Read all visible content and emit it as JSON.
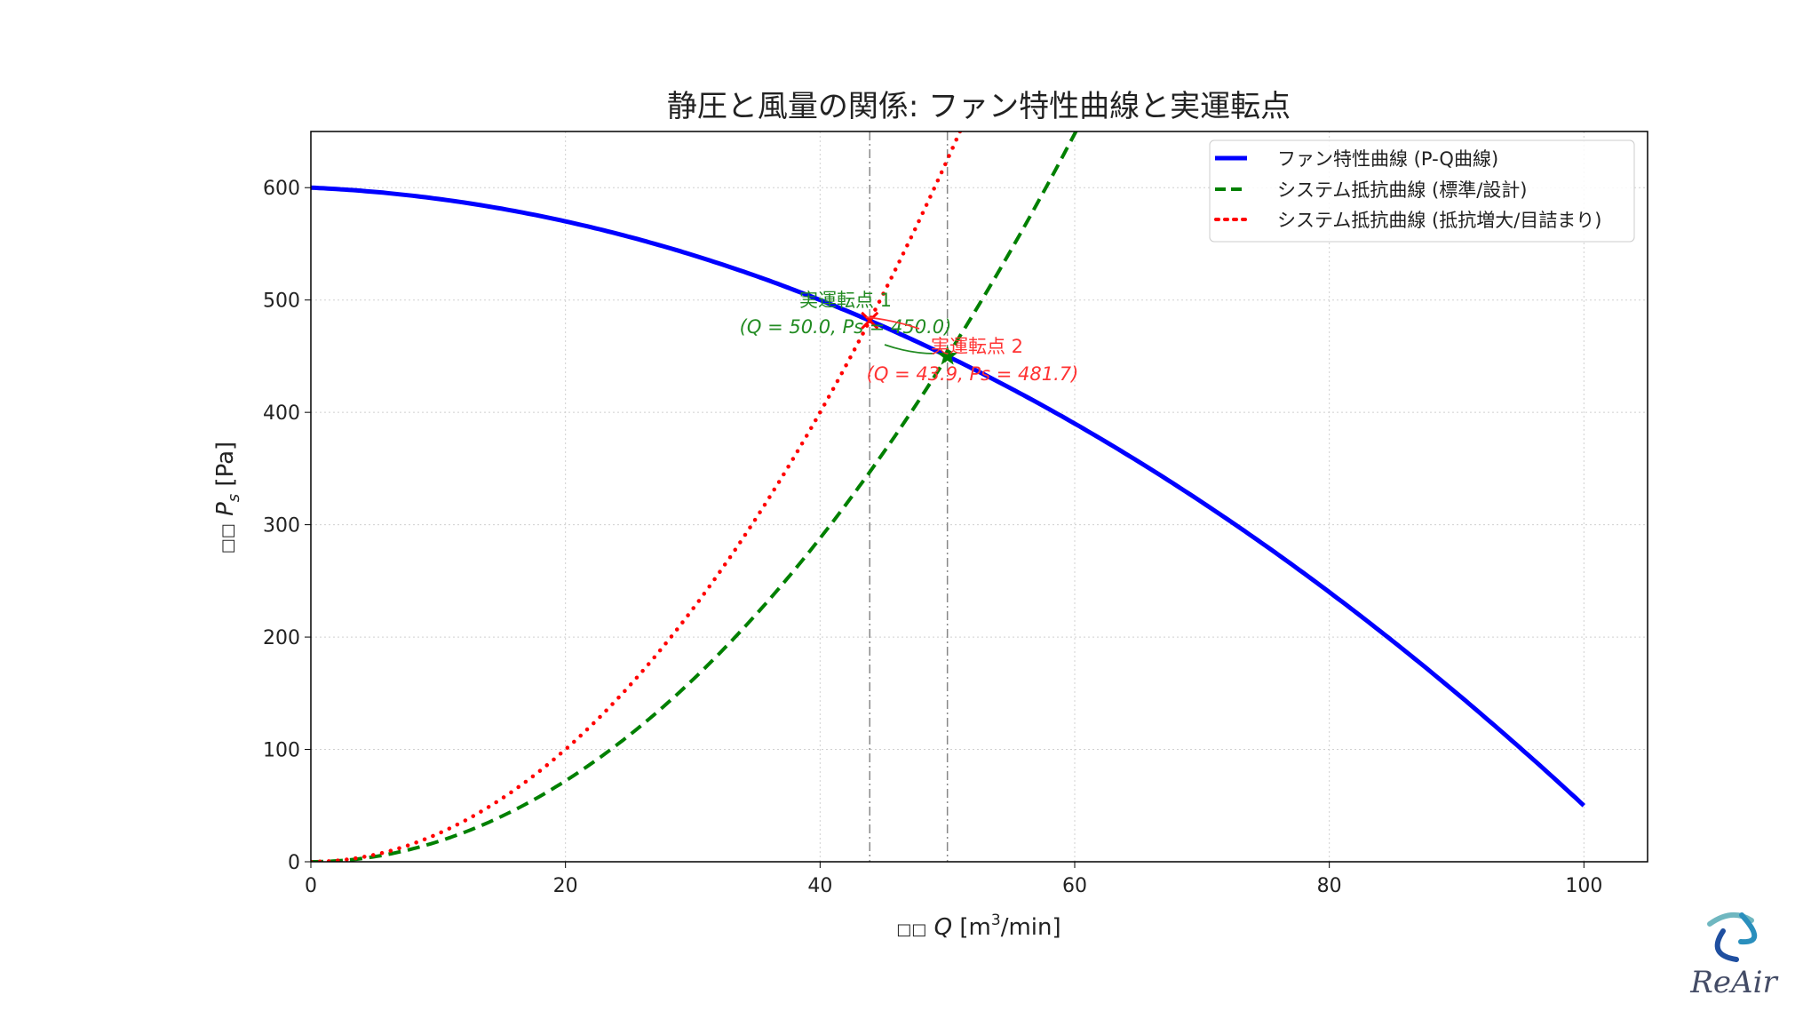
{
  "chart_data": {
    "type": "line",
    "title": "静圧と風量の関係: ファン特性曲線と実運転点",
    "xlabel": "□□ Q [m³/min]",
    "xlabel_parts": {
      "prefix": "□□",
      "var": "Q",
      "unit_a": "[m",
      "sup": "3",
      "unit_b": "/min]"
    },
    "ylabel_parts": {
      "prefix": "□□",
      "var": "P",
      "sub": "s",
      "unit": "[Pa]"
    },
    "xlim": [
      0,
      105
    ],
    "ylim": [
      0,
      650
    ],
    "xticks": [
      0,
      20,
      40,
      60,
      80,
      100
    ],
    "yticks": [
      0,
      100,
      200,
      300,
      400,
      500,
      600
    ],
    "grid": true,
    "legend_position": "top-right",
    "series": [
      {
        "name": "ファン特性曲線 (P-Q曲線)",
        "color": "#0000ff",
        "style": "solid",
        "formula": "P = 600 - 0.5Q - 0.05Q²",
        "x_range": [
          0,
          100
        ]
      },
      {
        "name": "システム抵抗曲線 (標準/設計)",
        "color": "#008000",
        "style": "dashed",
        "formula": "P = 0.18Q²",
        "x_range": [
          0,
          105
        ]
      },
      {
        "name": "システム抵抗曲線 (抵抗増大/目詰まり)",
        "color": "#ff0000",
        "style": "dotted",
        "formula": "P = 0.25Q²",
        "x_range": [
          0,
          105
        ]
      }
    ],
    "operating_points": [
      {
        "label": "実運転点 1",
        "detail": "(Q = 50.0, Ps = 450.0)",
        "q": 50.0,
        "p": 450.0,
        "color": "#008000",
        "marker": "star"
      },
      {
        "label": "実運転点 2",
        "detail": "(Q = 43.9, Ps = 481.7)",
        "q": 43.9,
        "p": 481.7,
        "color": "#ff0000",
        "marker": "x"
      }
    ],
    "vlines": [
      43.9,
      50.0
    ]
  },
  "logo": {
    "text": "ReAir"
  }
}
